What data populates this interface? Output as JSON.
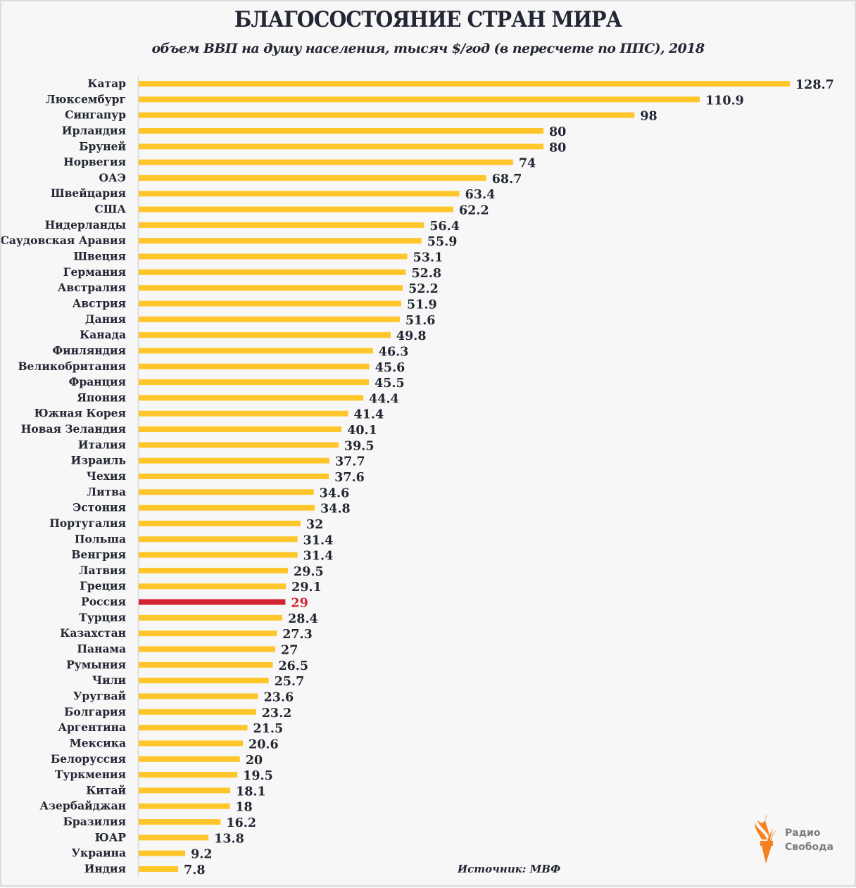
{
  "chart_data": {
    "type": "bar",
    "orientation": "horizontal",
    "title": "БЛАГОСОСТОЯНИЕ СТРАН МИРА",
    "subtitle": "объем ВВП на душу населения, тысяч $/год (в пересчете по ППС), 2018",
    "xlabel": "",
    "ylabel": "",
    "xlim": [
      0,
      128.7
    ],
    "grid": false,
    "legend": "none",
    "highlight": "Россия",
    "colors": {
      "bar": "#ffc62b",
      "highlight": "#d42330",
      "text": "#232733",
      "highlight_text": "#d42330"
    },
    "categories": [
      "Катар",
      "Люксембург",
      "Сингапур",
      "Ирландия",
      "Бруней",
      "Норвегия",
      "ОАЭ",
      "Швейцария",
      "США",
      "Нидерланды",
      "Саудовская Аравия",
      "Швеция",
      "Германия",
      "Австралия",
      "Австрия",
      "Дания",
      "Канада",
      "Финляндия",
      "Великобритания",
      "Франция",
      "Япония",
      "Южная Корея",
      "Новая Зеландия",
      "Италия",
      "Израиль",
      "Чехия",
      "Литва",
      "Эстония",
      "Португалия",
      "Польша",
      "Венгрия",
      "Латвия",
      "Греция",
      "Россия",
      "Турция",
      "Казахстан",
      "Панама",
      "Румыния",
      "Чили",
      "Уругвай",
      "Болгария",
      "Аргентина",
      "Мексика",
      "Белоруссия",
      "Туркмения",
      "Китай",
      "Азербайджан",
      "Бразилия",
      "ЮАР",
      "Украина",
      "Индия"
    ],
    "values": [
      128.7,
      110.9,
      98,
      80,
      80,
      74,
      68.7,
      63.4,
      62.2,
      56.4,
      55.9,
      53.1,
      52.8,
      52.2,
      51.9,
      51.6,
      49.8,
      46.3,
      45.6,
      45.5,
      44.4,
      41.4,
      40.1,
      39.5,
      37.7,
      37.6,
      34.6,
      34.8,
      32,
      31.4,
      31.4,
      29.5,
      29.1,
      29,
      28.4,
      27.3,
      27,
      26.5,
      25.7,
      23.6,
      23.2,
      21.5,
      20.6,
      20,
      19.5,
      18.1,
      18,
      16.2,
      13.8,
      9.2,
      7.8
    ]
  },
  "footer": {
    "source": "Источник: МВФ",
    "logo_line1": "Радио",
    "logo_line2": "Свобода",
    "logo_icon": "torch-icon",
    "logo_color": "#f6821f"
  }
}
